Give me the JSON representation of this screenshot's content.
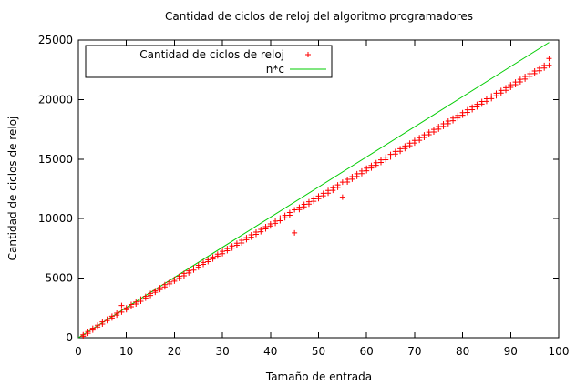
{
  "chart_data": {
    "type": "scatter",
    "title": "Cantidad de ciclos de reloj del algoritmo programadores",
    "xlabel": "Tamaño de entrada",
    "ylabel": "Cantidad de ciclos de reloj",
    "xlim": [
      0,
      100
    ],
    "ylim": [
      0,
      25000
    ],
    "x_ticks": [
      0,
      10,
      20,
      30,
      40,
      50,
      60,
      70,
      80,
      90,
      100
    ],
    "y_ticks": [
      0,
      5000,
      10000,
      15000,
      20000,
      25000
    ],
    "x_tick_labels": [
      "0",
      "10",
      "20",
      "30",
      "40",
      "50",
      "60",
      "70",
      "80",
      "90",
      "100"
    ],
    "y_tick_labels": [
      "0",
      "5000",
      "10000",
      "15000",
      "20000",
      "25000"
    ],
    "grid": false,
    "legend_position": "top-left",
    "series": [
      {
        "name": "Cantidad de ciclos de reloj",
        "marker": "+",
        "color": "#ff0000",
        "points": [
          [
            1,
            120
          ],
          [
            1,
            250
          ],
          [
            2,
            370
          ],
          [
            2,
            520
          ],
          [
            3,
            640
          ],
          [
            3,
            790
          ],
          [
            4,
            900
          ],
          [
            4,
            1050
          ],
          [
            5,
            1150
          ],
          [
            5,
            1330
          ],
          [
            6,
            1430
          ],
          [
            6,
            1560
          ],
          [
            7,
            1650
          ],
          [
            7,
            1810
          ],
          [
            8,
            1900
          ],
          [
            8,
            2060
          ],
          [
            9,
            2150
          ],
          [
            9,
            2700
          ],
          [
            10,
            2350
          ],
          [
            10,
            2500
          ],
          [
            11,
            2600
          ],
          [
            11,
            2790
          ],
          [
            12,
            2830
          ],
          [
            12,
            3000
          ],
          [
            13,
            3060
          ],
          [
            13,
            3240
          ],
          [
            14,
            3320
          ],
          [
            14,
            3470
          ],
          [
            15,
            3550
          ],
          [
            15,
            3720
          ],
          [
            16,
            3810
          ],
          [
            16,
            3950
          ],
          [
            17,
            4040
          ],
          [
            17,
            4200
          ],
          [
            18,
            4260
          ],
          [
            18,
            4450
          ],
          [
            19,
            4520
          ],
          [
            19,
            4670
          ],
          [
            20,
            4750
          ],
          [
            20,
            4900
          ],
          [
            21,
            4980
          ],
          [
            21,
            5150
          ],
          [
            22,
            5200
          ],
          [
            22,
            5400
          ],
          [
            23,
            5440
          ],
          [
            23,
            5610
          ],
          [
            24,
            5680
          ],
          [
            24,
            5850
          ],
          [
            25,
            5920
          ],
          [
            25,
            6080
          ],
          [
            26,
            6150
          ],
          [
            26,
            6320
          ],
          [
            27,
            6380
          ],
          [
            27,
            6550
          ],
          [
            28,
            6600
          ],
          [
            28,
            6780
          ],
          [
            29,
            6850
          ],
          [
            29,
            7010
          ],
          [
            30,
            7050
          ],
          [
            30,
            7250
          ],
          [
            31,
            7300
          ],
          [
            31,
            7480
          ],
          [
            32,
            7520
          ],
          [
            32,
            7700
          ],
          [
            33,
            7760
          ],
          [
            33,
            7930
          ],
          [
            34,
            7950
          ],
          [
            34,
            8180
          ],
          [
            35,
            8230
          ],
          [
            35,
            8400
          ],
          [
            36,
            8440
          ],
          [
            36,
            8640
          ],
          [
            37,
            8680
          ],
          [
            37,
            8870
          ],
          [
            38,
            8900
          ],
          [
            38,
            9100
          ],
          [
            39,
            9140
          ],
          [
            39,
            9330
          ],
          [
            40,
            9380
          ],
          [
            40,
            9560
          ],
          [
            41,
            9600
          ],
          [
            41,
            9800
          ],
          [
            42,
            9820
          ],
          [
            42,
            10050
          ],
          [
            43,
            10070
          ],
          [
            43,
            10270
          ],
          [
            44,
            10280
          ],
          [
            44,
            10510
          ],
          [
            45,
            8800
          ],
          [
            45,
            10740
          ],
          [
            46,
            10760
          ],
          [
            46,
            10960
          ],
          [
            47,
            10990
          ],
          [
            47,
            11200
          ],
          [
            48,
            11220
          ],
          [
            48,
            11420
          ],
          [
            49,
            11460
          ],
          [
            49,
            11660
          ],
          [
            50,
            11680
          ],
          [
            50,
            11900
          ],
          [
            51,
            11920
          ],
          [
            51,
            12130
          ],
          [
            52,
            12140
          ],
          [
            52,
            12370
          ],
          [
            53,
            12380
          ],
          [
            53,
            12600
          ],
          [
            54,
            12620
          ],
          [
            54,
            12830
          ],
          [
            55,
            11800
          ],
          [
            55,
            13060
          ],
          [
            56,
            13070
          ],
          [
            56,
            13300
          ],
          [
            57,
            13310
          ],
          [
            57,
            13530
          ],
          [
            58,
            13540
          ],
          [
            58,
            13770
          ],
          [
            59,
            13780
          ],
          [
            59,
            14000
          ],
          [
            60,
            14020
          ],
          [
            60,
            14240
          ],
          [
            61,
            14250
          ],
          [
            61,
            14470
          ],
          [
            62,
            14480
          ],
          [
            62,
            14700
          ],
          [
            63,
            14720
          ],
          [
            63,
            14940
          ],
          [
            64,
            14950
          ],
          [
            64,
            15170
          ],
          [
            65,
            15180
          ],
          [
            65,
            15400
          ],
          [
            66,
            15420
          ],
          [
            66,
            15640
          ],
          [
            67,
            15650
          ],
          [
            67,
            15870
          ],
          [
            68,
            15880
          ],
          [
            68,
            16100
          ],
          [
            69,
            16120
          ],
          [
            69,
            16340
          ],
          [
            70,
            16350
          ],
          [
            70,
            16570
          ],
          [
            71,
            16580
          ],
          [
            71,
            16800
          ],
          [
            72,
            16820
          ],
          [
            72,
            17040
          ],
          [
            73,
            17050
          ],
          [
            73,
            17270
          ],
          [
            74,
            17280
          ],
          [
            74,
            17500
          ],
          [
            75,
            17520
          ],
          [
            75,
            17740
          ],
          [
            76,
            17750
          ],
          [
            76,
            17970
          ],
          [
            77,
            17980
          ],
          [
            77,
            18200
          ],
          [
            78,
            18220
          ],
          [
            78,
            18440
          ],
          [
            79,
            18450
          ],
          [
            79,
            18670
          ],
          [
            80,
            18680
          ],
          [
            80,
            18900
          ],
          [
            81,
            18920
          ],
          [
            81,
            19140
          ],
          [
            82,
            19150
          ],
          [
            82,
            19370
          ],
          [
            83,
            19380
          ],
          [
            83,
            19600
          ],
          [
            84,
            19620
          ],
          [
            84,
            19840
          ],
          [
            85,
            19850
          ],
          [
            85,
            20070
          ],
          [
            86,
            20080
          ],
          [
            86,
            20300
          ],
          [
            87,
            20320
          ],
          [
            87,
            20540
          ],
          [
            88,
            20550
          ],
          [
            88,
            20770
          ],
          [
            89,
            20780
          ],
          [
            89,
            21000
          ],
          [
            90,
            21020
          ],
          [
            90,
            21240
          ],
          [
            91,
            21250
          ],
          [
            91,
            21470
          ],
          [
            92,
            21480
          ],
          [
            92,
            21700
          ],
          [
            93,
            21720
          ],
          [
            93,
            21940
          ],
          [
            94,
            21950
          ],
          [
            94,
            22170
          ],
          [
            95,
            22180
          ],
          [
            95,
            22400
          ],
          [
            96,
            22420
          ],
          [
            96,
            22640
          ],
          [
            97,
            22650
          ],
          [
            97,
            22870
          ],
          [
            98,
            22880
          ],
          [
            98,
            23450
          ]
        ]
      },
      {
        "name": "n*c",
        "type": "line",
        "color": "#00cc00",
        "points": [
          [
            0,
            0
          ],
          [
            98,
            24800
          ]
        ]
      }
    ]
  }
}
